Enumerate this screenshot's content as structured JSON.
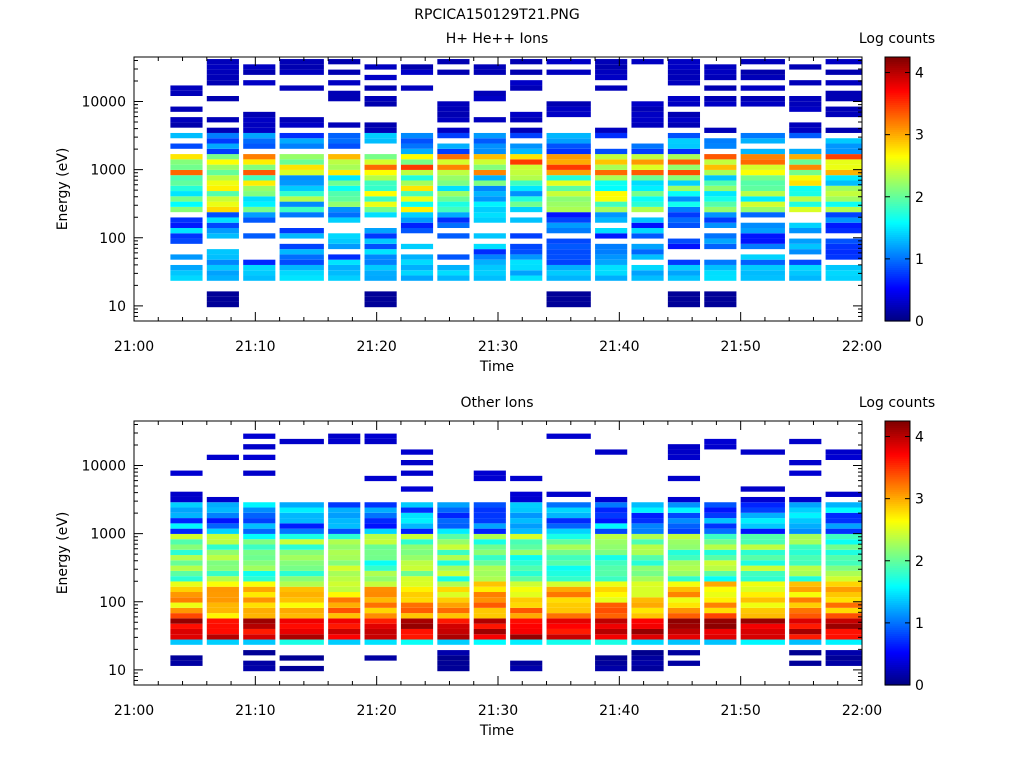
{
  "figure_title": "RPCICA150129T21.PNG",
  "chart_data": [
    {
      "type": "heatmap",
      "title": "H+ He++ Ions",
      "xlabel": "Time",
      "ylabel": "Energy (eV)",
      "x_ticks": [
        "21:00",
        "21:10",
        "21:20",
        "21:30",
        "21:40",
        "21:50",
        "22:00"
      ],
      "x_range": [
        "21:00",
        "22:00"
      ],
      "y_scale": "log",
      "y_ticks": [
        10,
        100,
        1000,
        10000
      ],
      "y_tick_labels": [
        "10",
        "100",
        "1000",
        "10000"
      ],
      "ylim": [
        6,
        45000
      ],
      "colorbar": {
        "label": "Log counts",
        "range": [
          0,
          4.25
        ],
        "ticks": [
          0,
          1,
          2,
          3,
          4
        ],
        "tick_labels": [
          "0",
          "1",
          "2",
          "3",
          "4"
        ]
      },
      "time_bins_start": [
        "21:03",
        "21:06",
        "21:09",
        "21:12",
        "21:16",
        "21:19",
        "21:22",
        "21:25",
        "21:28",
        "21:31",
        "21:34",
        "21:38",
        "21:41",
        "21:44",
        "21:47",
        "21:50",
        "21:54",
        "21:57"
      ],
      "profile": "hplus"
    },
    {
      "type": "heatmap",
      "title": "Other Ions",
      "xlabel": "Time",
      "ylabel": "Energy (eV)",
      "x_ticks": [
        "21:00",
        "21:10",
        "21:20",
        "21:30",
        "21:40",
        "21:50",
        "22:00"
      ],
      "x_range": [
        "21:00",
        "22:00"
      ],
      "y_scale": "log",
      "y_ticks": [
        10,
        100,
        1000,
        10000
      ],
      "y_tick_labels": [
        "10",
        "100",
        "1000",
        "10000"
      ],
      "ylim": [
        6,
        45000
      ],
      "colorbar": {
        "label": "Log counts",
        "range": [
          0,
          4.25
        ],
        "ticks": [
          0,
          1,
          2,
          3,
          4
        ],
        "tick_labels": [
          "0",
          "1",
          "2",
          "3",
          "4"
        ]
      },
      "time_bins_start": [
        "21:03",
        "21:06",
        "21:09",
        "21:12",
        "21:16",
        "21:19",
        "21:22",
        "21:25",
        "21:28",
        "21:31",
        "21:34",
        "21:38",
        "21:41",
        "21:44",
        "21:47",
        "21:50",
        "21:54",
        "21:57"
      ],
      "profile": "other"
    }
  ]
}
